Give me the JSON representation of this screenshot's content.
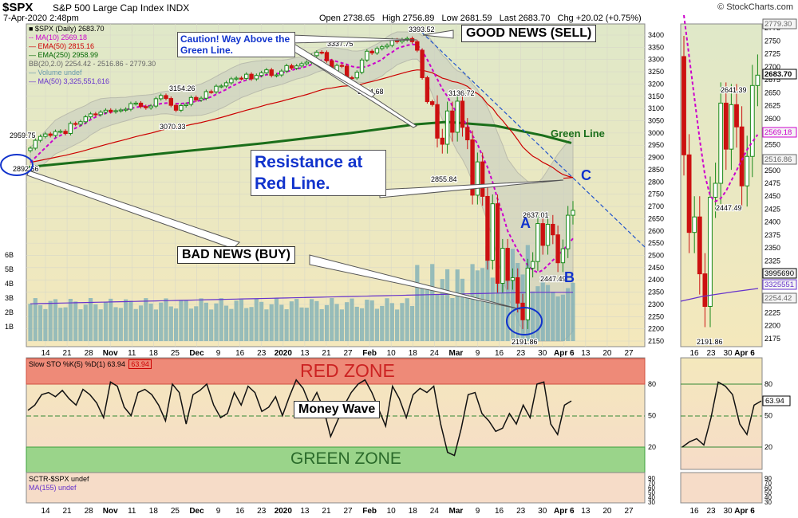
{
  "header": {
    "symbol": "$SPX",
    "name": "S&P 500 Large Cap Index",
    "exchange": "INDX",
    "date": "7-Apr-2020 2:48pm",
    "open": "Open 2738.65",
    "high": "High 2756.89",
    "low": "Low 2681.59",
    "last": "Last 2683.70",
    "chg": "Chg +20.02 (+0.75%)",
    "brand": "© StockCharts.com"
  },
  "legend": [
    {
      "text": "■ $SPX (Daily) 2683.70",
      "color": "#000000"
    },
    {
      "text": "-- MA(10) 2569.18",
      "color": "#cc00cc"
    },
    {
      "text": "— EMA(50) 2815.16",
      "color": "#cc0000"
    },
    {
      "text": "— EMA(250) 2958.99",
      "color": "#006600"
    },
    {
      "text": "BB(20,2.0) 2254.42 - 2516.86 - 2779.30",
      "color": "#666666"
    },
    {
      "text": "— Volume undef",
      "color": "#6699aa"
    },
    {
      "text": "— MA(50) 3,325,551,616",
      "color": "#6633cc"
    }
  ],
  "colors": {
    "up": "#1a8a1a",
    "down": "#cc1111",
    "ma10": "#cc00cc",
    "ema50": "#cc0000",
    "ema250": "#1a6e1a",
    "bb": "#999999",
    "volume": "#7fb0b8",
    "volma": "#6633cc",
    "plotbg": "#eef0c8",
    "stoch": "#111111"
  },
  "annotations": {
    "caution": "Caution! Way Above the Green Line.",
    "good_news": "GOOD NEWS (SELL)",
    "green_line": "Green Line",
    "resistance": "Resistance at Red Line.",
    "bad_news": "BAD NEWS (BUY)",
    "label_a": "A",
    "label_b": "B",
    "label_c": "C",
    "money_wave": "Money Wave",
    "red_zone": "RED ZONE",
    "green_zone": "GREEN ZONE"
  },
  "price_labels": [
    "2959.75",
    "2892.56",
    "3154.26",
    "3070.33",
    "3393.52",
    "3214.68",
    "3136.72",
    "2855.84",
    "2637.01",
    "2447.49",
    "2191.86",
    "3337.75"
  ],
  "price_axis_right": [
    "3400",
    "3350",
    "3300",
    "3250",
    "3200",
    "3150",
    "3100",
    "3050",
    "3000",
    "2950",
    "2900",
    "2850",
    "2800",
    "2750",
    "2700",
    "2650",
    "2600",
    "2550",
    "2500",
    "2450",
    "2400",
    "2350",
    "2300",
    "2250",
    "2200",
    "2150"
  ],
  "volume_axis": [
    "6B",
    "5B",
    "4B",
    "3B",
    "2B",
    "1B"
  ],
  "x_axis_main": [
    "14",
    "21",
    "28",
    "Nov",
    "11",
    "18",
    "25",
    "Dec",
    "9",
    "16",
    "23",
    "2020",
    "13",
    "21",
    "27",
    "Feb",
    "10",
    "18",
    "24",
    "Mar",
    "9",
    "16",
    "23",
    "30",
    "Apr 6",
    "13",
    "20",
    "27"
  ],
  "x_axis_mini": [
    "16",
    "23",
    "30",
    "Apr 6"
  ],
  "stoch": {
    "legend": "Slow STO %K(5) %D(1) 63.94",
    "value_box": "63.94",
    "axis": [
      "80",
      "50",
      "20"
    ]
  },
  "sctr": {
    "legend1": "SCTR-$SPX undef",
    "legend2": "MA(155) undef",
    "axis": [
      "90",
      "70",
      "60",
      "50",
      "40",
      "30"
    ]
  },
  "mini": {
    "price_axis": [
      "2775",
      "2750",
      "2725",
      "2700",
      "2675",
      "2650",
      "2625",
      "2600",
      "2575",
      "2550",
      "2525",
      "2500",
      "2475",
      "2450",
      "2425",
      "2400",
      "2375",
      "2350",
      "2325",
      "2300",
      "2275",
      "2250",
      "2225",
      "2200",
      "2175"
    ],
    "value_boxes": [
      {
        "text": "2779.30",
        "color": "#666666"
      },
      {
        "text": "2683.70",
        "color": "#000000"
      },
      {
        "text": "2569.18",
        "color": "#cc00cc"
      },
      {
        "text": "2516.86",
        "color": "#666666"
      },
      {
        "text": "3995690",
        "color": "#000000"
      },
      {
        "text": "3325551",
        "color": "#6633cc"
      },
      {
        "text": "2254.42",
        "color": "#666666"
      }
    ],
    "labels": [
      "2641.39",
      "2447.49",
      "2191.86"
    ],
    "stoch_axis": [
      "80",
      "50",
      "20"
    ],
    "stoch_box": "63.94",
    "sctr_axis": [
      "90",
      "70",
      "60",
      "50",
      "40",
      "30"
    ]
  },
  "chart_data": {
    "type": "candlestick",
    "x_range": [
      "2019-10-10",
      "2020-04-07"
    ],
    "ylim": [
      2150,
      3420
    ],
    "closes": [
      2938,
      2970,
      2986,
      2996,
      2990,
      3006,
      3007,
      2998,
      3039,
      3036,
      3046,
      3066,
      3078,
      3075,
      3085,
      3093,
      3087,
      3091,
      3094,
      3097,
      3120,
      3122,
      3108,
      3103,
      3110,
      3140,
      3153,
      3141,
      3113,
      3093,
      3112,
      3117,
      3145,
      3135,
      3142,
      3169,
      3168,
      3191,
      3192,
      3205,
      3221,
      3224,
      3223,
      3240,
      3221,
      3235,
      3246,
      3258,
      3235,
      3237,
      3253,
      3275,
      3265,
      3274,
      3283,
      3289,
      3316,
      3330,
      3329,
      3295,
      3243,
      3276,
      3273,
      3226,
      3225,
      3248,
      3298,
      3334,
      3327,
      3345,
      3352,
      3358,
      3380,
      3373,
      3381,
      3386,
      3373,
      3338,
      3226,
      3128,
      3116,
      2979,
      2954,
      3090,
      3003,
      3130,
      3023,
      2972,
      2746,
      2882,
      2741,
      2480,
      2711,
      2386,
      2529,
      2398,
      2409,
      2305,
      2237,
      2448,
      2475,
      2630,
      2541,
      2627,
      2584,
      2470,
      2527,
      2664,
      2684
    ],
    "ma10_closes": [
      2880,
      2900,
      2920,
      2940,
      2960,
      2980,
      2990,
      3000,
      3010,
      3020,
      3030,
      3040,
      3055,
      3065,
      3075,
      3080,
      3085,
      3088,
      3092,
      3095,
      3100,
      3105,
      3108,
      3110,
      3112,
      3115,
      3120,
      3122,
      3122,
      3120,
      3120,
      3122,
      3125,
      3130,
      3133,
      3140,
      3148,
      3158,
      3168,
      3178,
      3190,
      3200,
      3210,
      3216,
      3222,
      3228,
      3232,
      3238,
      3240,
      3242,
      3245,
      3250,
      3256,
      3262,
      3266,
      3272,
      3280,
      3290,
      3298,
      3300,
      3298,
      3292,
      3286,
      3280,
      3272,
      3268,
      3268,
      3272,
      3280,
      3290,
      3300,
      3318,
      3330,
      3345,
      3352,
      3358,
      3362,
      3360,
      3335,
      3300,
      3260,
      3220,
      3180,
      3150,
      3110,
      3080,
      3060,
      3030,
      2990,
      2955,
      2905,
      2860,
      2800,
      2730,
      2670,
      2600,
      2560,
      2520,
      2490,
      2460,
      2440,
      2430,
      2440,
      2460,
      2480,
      2500,
      2520,
      2545,
      2569
    ],
    "ema50_last": 2815.16,
    "ema250_last": 2958.99,
    "bb": {
      "upper": 2779.3,
      "middle": 2516.86,
      "lower": 2254.42
    },
    "volume_ma50": 3325551616,
    "stoch_k": [
      55,
      60,
      70,
      72,
      68,
      74,
      66,
      60,
      75,
      70,
      62,
      48,
      82,
      78,
      58,
      50,
      72,
      75,
      70,
      60,
      45,
      80,
      72,
      42,
      70,
      74,
      80,
      60,
      48,
      52,
      72,
      60,
      78,
      72,
      54,
      58,
      68,
      50,
      68,
      84,
      76,
      60,
      72,
      56,
      30,
      45,
      60,
      72,
      80,
      84,
      72,
      56,
      40,
      78,
      66,
      48,
      70,
      76,
      72,
      78,
      42,
      15,
      12,
      38,
      70,
      72,
      52,
      45,
      35,
      38,
      52,
      42,
      60,
      48,
      80,
      82,
      42,
      32,
      60,
      63.94
    ],
    "stoch_last": 63.94
  }
}
